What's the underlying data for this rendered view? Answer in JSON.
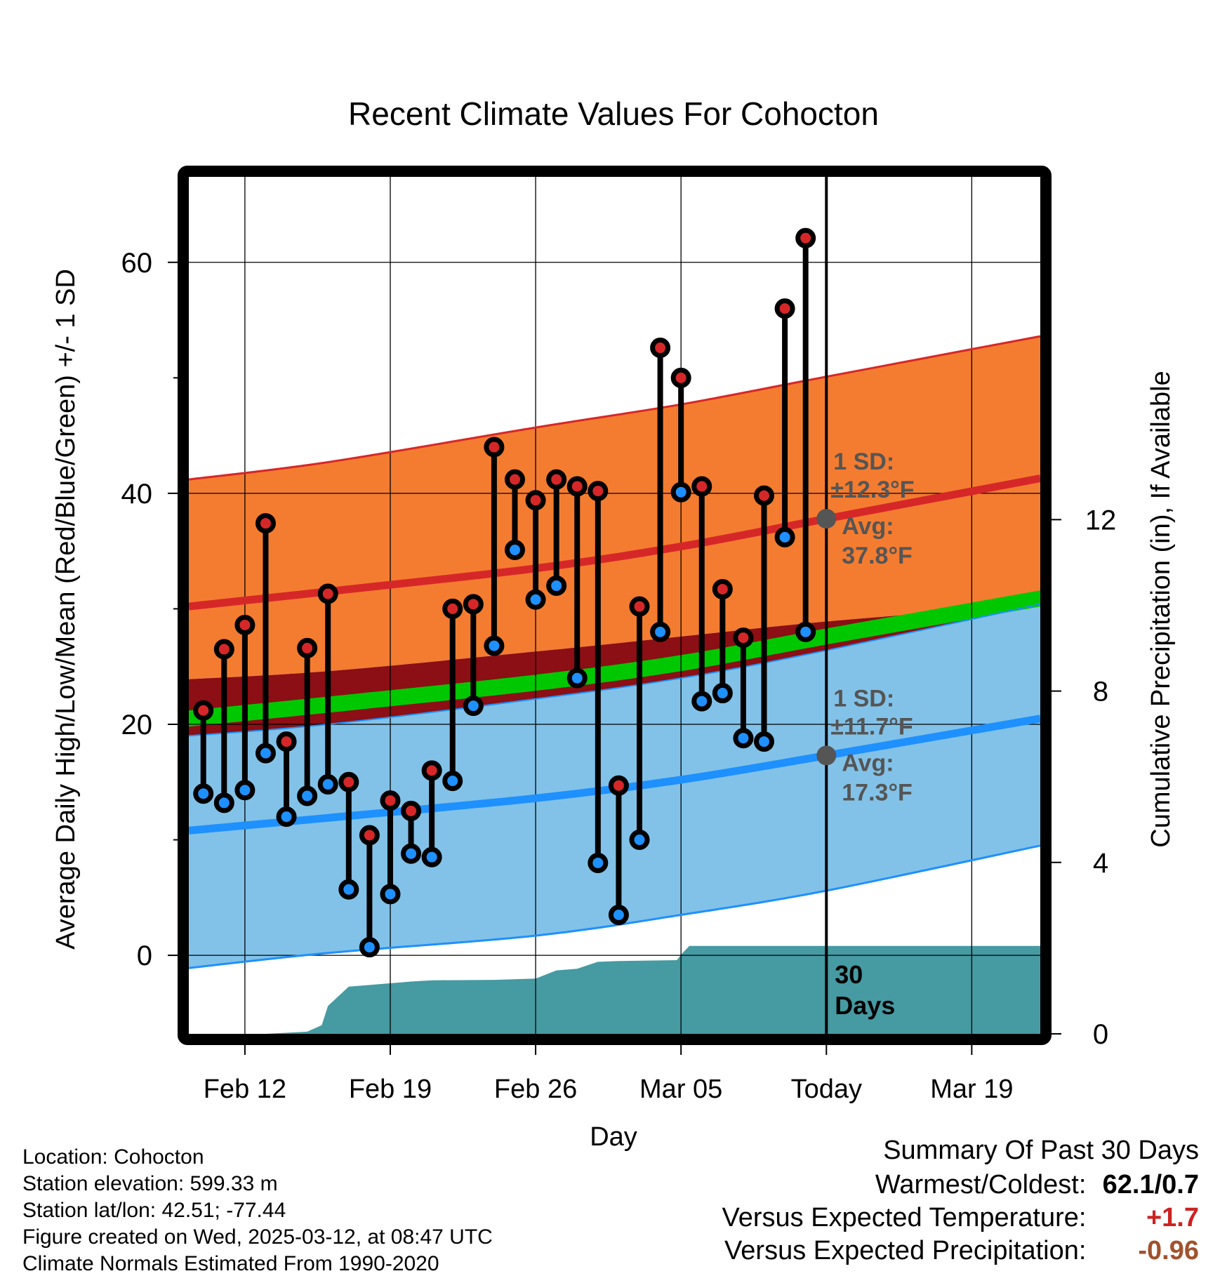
{
  "chart_data": {
    "type": "line",
    "title": "Recent Climate Values For Cohocton",
    "xlabel": "Day",
    "ylabel_left": "Average Daily High/Low/Mean (Red/Blue/Green) +/- 1 SD",
    "ylabel_right": "Cumulative Precipitation (in), If Available",
    "ylim_left": [
      -6.8,
      67.4
    ],
    "ylim_right": [
      0,
      20
    ],
    "x_ticks": [
      {
        "day": 6,
        "label": "Feb 12"
      },
      {
        "day": 13,
        "label": "Feb 19"
      },
      {
        "day": 20,
        "label": "Feb 26"
      },
      {
        "day": 27,
        "label": "Mar 05"
      },
      {
        "day": 34,
        "label": "Today"
      },
      {
        "day": 41,
        "label": "Mar 19"
      }
    ],
    "y_ticks_left": [
      {
        "value": 0,
        "label": "0"
      },
      {
        "value": 20,
        "label": "20"
      },
      {
        "value": 40,
        "label": "40"
      },
      {
        "value": 60,
        "label": "60"
      }
    ],
    "y_minor_left": [
      10,
      30,
      50
    ],
    "y_ticks_right": [
      {
        "value": 0,
        "label": "0"
      },
      {
        "value": 4,
        "label": "4"
      },
      {
        "value": 8,
        "label": "8"
      },
      {
        "value": 12,
        "label": "12"
      }
    ],
    "x_range_days": [
      3.3,
      44.3
    ],
    "grid": true,
    "today_day": 34,
    "normals": {
      "days": [
        3.3,
        10,
        20,
        27,
        34,
        44.3
      ],
      "high_avg": [
        30.2,
        31.5,
        33.5,
        35.4,
        37.8,
        41.3
      ],
      "high_upper": [
        41.2,
        42.7,
        45.7,
        47.7,
        50.1,
        53.6
      ],
      "high_lower": [
        23.9,
        24.6,
        26.3,
        27.6,
        28.9,
        30.4
      ],
      "low_avg": [
        10.8,
        11.9,
        13.6,
        15.2,
        17.3,
        20.5
      ],
      "low_upper": [
        19.0,
        20.0,
        22.2,
        24.0,
        26.4,
        30.4
      ],
      "low_lower": [
        -1.1,
        0.2,
        1.7,
        3.5,
        5.6,
        9.5
      ],
      "mean_avg": [
        20.5,
        21.7,
        23.6,
        25.3,
        27.6,
        30.9
      ],
      "mean_halfwidth": 0.7
    },
    "series": [
      {
        "name": "Daily High",
        "values": [
          21.2,
          26.5,
          28.6,
          37.4,
          18.5,
          26.6,
          31.3,
          15.0,
          10.4,
          13.4,
          12.5,
          16.0,
          30.0,
          30.4,
          44.0,
          41.2,
          39.4,
          41.2,
          40.6,
          40.2,
          14.7,
          30.2,
          52.6,
          50.0,
          40.6,
          31.7,
          27.5,
          39.8,
          56.0,
          62.1
        ]
      },
      {
        "name": "Daily Low",
        "values": [
          14.0,
          13.2,
          14.3,
          17.5,
          12.0,
          13.8,
          14.8,
          5.7,
          0.7,
          5.3,
          8.8,
          8.5,
          15.1,
          21.6,
          26.8,
          35.1,
          30.8,
          32.0,
          24.0,
          8.0,
          3.5,
          10.0,
          28.0,
          40.1,
          22.0,
          22.7,
          18.8,
          18.5,
          36.2,
          28.0
        ]
      }
    ],
    "day_start": 4,
    "precip_cumulative": {
      "days": [
        3.3,
        7,
        9,
        9.7,
        10,
        11,
        14,
        15,
        18,
        20,
        21,
        22,
        23,
        24,
        26.8,
        27,
        27.4,
        44.3
      ],
      "values": [
        0,
        0,
        0.05,
        0.2,
        0.65,
        1.1,
        1.22,
        1.25,
        1.26,
        1.29,
        1.48,
        1.52,
        1.68,
        1.7,
        1.72,
        1.85,
        2.05,
        2.05
      ]
    },
    "precip_label": "30\nDays",
    "annotations": {
      "high": {
        "sd_label": "1 SD:",
        "sd_value": "±12.3°F",
        "avg_label": "Avg:",
        "avg_value": "37.8°F",
        "avg": 37.8
      },
      "low": {
        "sd_label": "1 SD:",
        "sd_value": "±11.7°F",
        "avg_label": "Avg:",
        "avg_value": "17.3°F",
        "avg": 17.3
      }
    },
    "colors": {
      "high_band": "#f47c30",
      "high_line": "#d62728",
      "low_band": "#82c2e8",
      "low_line": "#1e90ff",
      "mean_band": "#00c800",
      "overlap_band": "#8b0f14",
      "precip_fill": "#469aa2",
      "high_marker": "#d62728",
      "low_marker": "#1e90ff",
      "annotation_text": "#555555",
      "positive": "#cc2222",
      "negative": "#a0522d"
    }
  },
  "info": {
    "location": "Location: Cohocton",
    "elevation": "Station elevation: 599.33 m",
    "latlon": "Station lat/lon: 42.51; -77.44",
    "created": "Figure created on Wed, 2025-03-12, at 08:47 UTC",
    "normals": "Climate Normals Estimated From 1990-2020"
  },
  "summary": {
    "title": "Summary Of Past 30 Days",
    "warmest_label": "Warmest/Coldest:",
    "warmest_value": "62.1/0.7",
    "temp_label": "Versus Expected Temperature:",
    "temp_value": "+1.7",
    "precip_label": "Versus Expected Precipitation:",
    "precip_value": "-0.96"
  }
}
